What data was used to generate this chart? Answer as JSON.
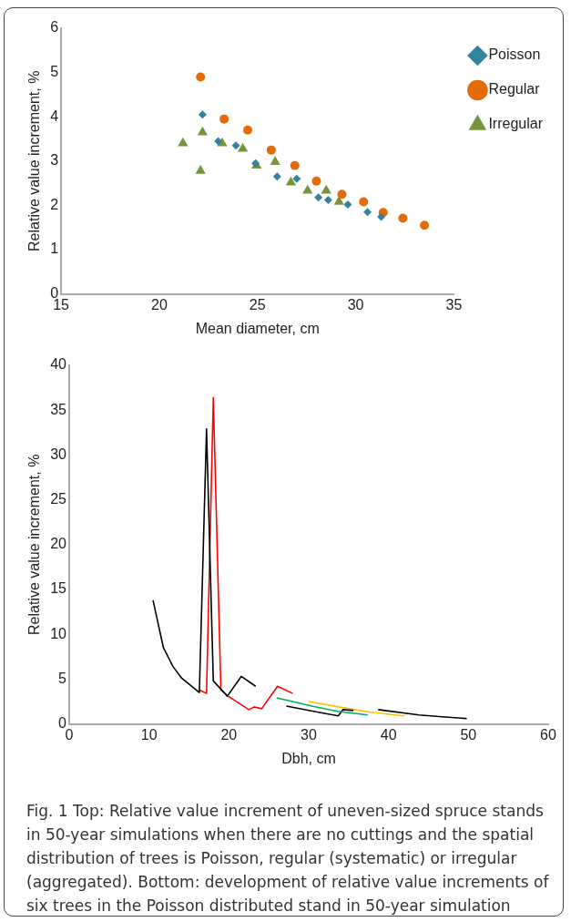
{
  "chart_data": [
    {
      "type": "scatter",
      "xlabel": "Mean diameter, cm",
      "ylabel": "Relative value increment, %",
      "xlim": [
        15,
        35
      ],
      "xticks": [
        15,
        20,
        25,
        30,
        35
      ],
      "ylim": [
        0,
        6
      ],
      "yticks": [
        0,
        1,
        2,
        3,
        4,
        5,
        6
      ],
      "grid": false,
      "legend": "top right",
      "series": [
        {
          "name": "Poisson",
          "color": "#31849b",
          "marker": "diamond",
          "x": [
            22.2,
            23.0,
            23.9,
            24.9,
            26.0,
            27.0,
            28.1,
            28.6,
            29.6,
            30.6,
            31.3
          ],
          "values": [
            4.05,
            3.45,
            3.35,
            2.95,
            2.65,
            2.6,
            2.18,
            2.12,
            2.02,
            1.85,
            1.74
          ]
        },
        {
          "name": "Regular",
          "color": "#e36c09",
          "marker": "circle",
          "x": [
            22.1,
            23.3,
            24.5,
            25.7,
            26.9,
            28.0,
            29.3,
            30.4,
            31.4,
            32.4,
            33.5
          ],
          "values": [
            4.9,
            3.95,
            3.7,
            3.25,
            2.9,
            2.55,
            2.25,
            2.08,
            1.84,
            1.71,
            1.55
          ]
        },
        {
          "name": "Irregular",
          "color": "#77933c",
          "marker": "triangle",
          "x": [
            21.2,
            22.2,
            22.1,
            23.2,
            24.25,
            24.95,
            25.9,
            26.7,
            27.55,
            28.5,
            29.15
          ],
          "values": [
            3.4,
            3.65,
            2.78,
            3.4,
            3.28,
            2.9,
            2.98,
            2.52,
            2.33,
            2.33,
            2.08
          ]
        }
      ]
    },
    {
      "type": "line",
      "xlabel": "Dbh, cm",
      "ylabel": "Relative value increment, %",
      "xlim": [
        0,
        60
      ],
      "xticks": [
        0,
        10,
        20,
        30,
        40,
        50,
        60
      ],
      "ylim": [
        0,
        40
      ],
      "yticks": [
        0,
        5,
        10,
        15,
        20,
        25,
        30,
        35,
        40
      ],
      "grid": false,
      "legend": false,
      "marker": "none",
      "annotations": [
        "Fig. 1 Top: Relative value increment of uneven-sized spruce stands in 50-year simulations when there are no cuttings and the spatial distribution of trees is Poisson, regular (systematic) or irregular (aggregated). Bottom: development of relative value increments of six trees in the Poisson distributed stand in 50-year simulation"
      ],
      "series": [
        {
          "color": "#000000",
          "x": [
            10.5,
            11.8,
            13.0,
            14.1,
            16.3,
            17.2,
            18.05,
            19.8,
            21.55,
            23.35
          ],
          "values": [
            13.8,
            8.5,
            6.4,
            5.1,
            3.5,
            32.9,
            4.8,
            3.1,
            5.3,
            4.2
          ]
        },
        {
          "color": "#ff0000",
          "x": [
            16.3,
            17.2,
            18.05,
            19.0,
            19.9,
            22.5,
            23.2,
            24.1,
            26.1,
            28.0
          ],
          "values": [
            3.8,
            3.4,
            36.4,
            3.8,
            3.1,
            1.6,
            1.9,
            1.7,
            4.2,
            3.4
          ]
        },
        {
          "color": "#00b050",
          "x": [
            26.0,
            30.4,
            33.6,
            37.4
          ],
          "values": [
            2.9,
            2.0,
            1.4,
            1.0
          ]
        },
        {
          "color": "#000000",
          "x": [
            27.2,
            31.2,
            33.7,
            34.3,
            35.6
          ],
          "values": [
            2.0,
            1.3,
            0.9,
            1.6,
            1.5
          ]
        },
        {
          "color": "#ffc000",
          "x": [
            30.0,
            34.4,
            37.7,
            42.0
          ],
          "values": [
            2.5,
            1.8,
            1.3,
            0.9
          ]
        },
        {
          "color": "#000000",
          "x": [
            38.7,
            43.8,
            46.7,
            49.8
          ],
          "values": [
            1.6,
            1.0,
            0.8,
            0.6
          ]
        }
      ]
    }
  ]
}
